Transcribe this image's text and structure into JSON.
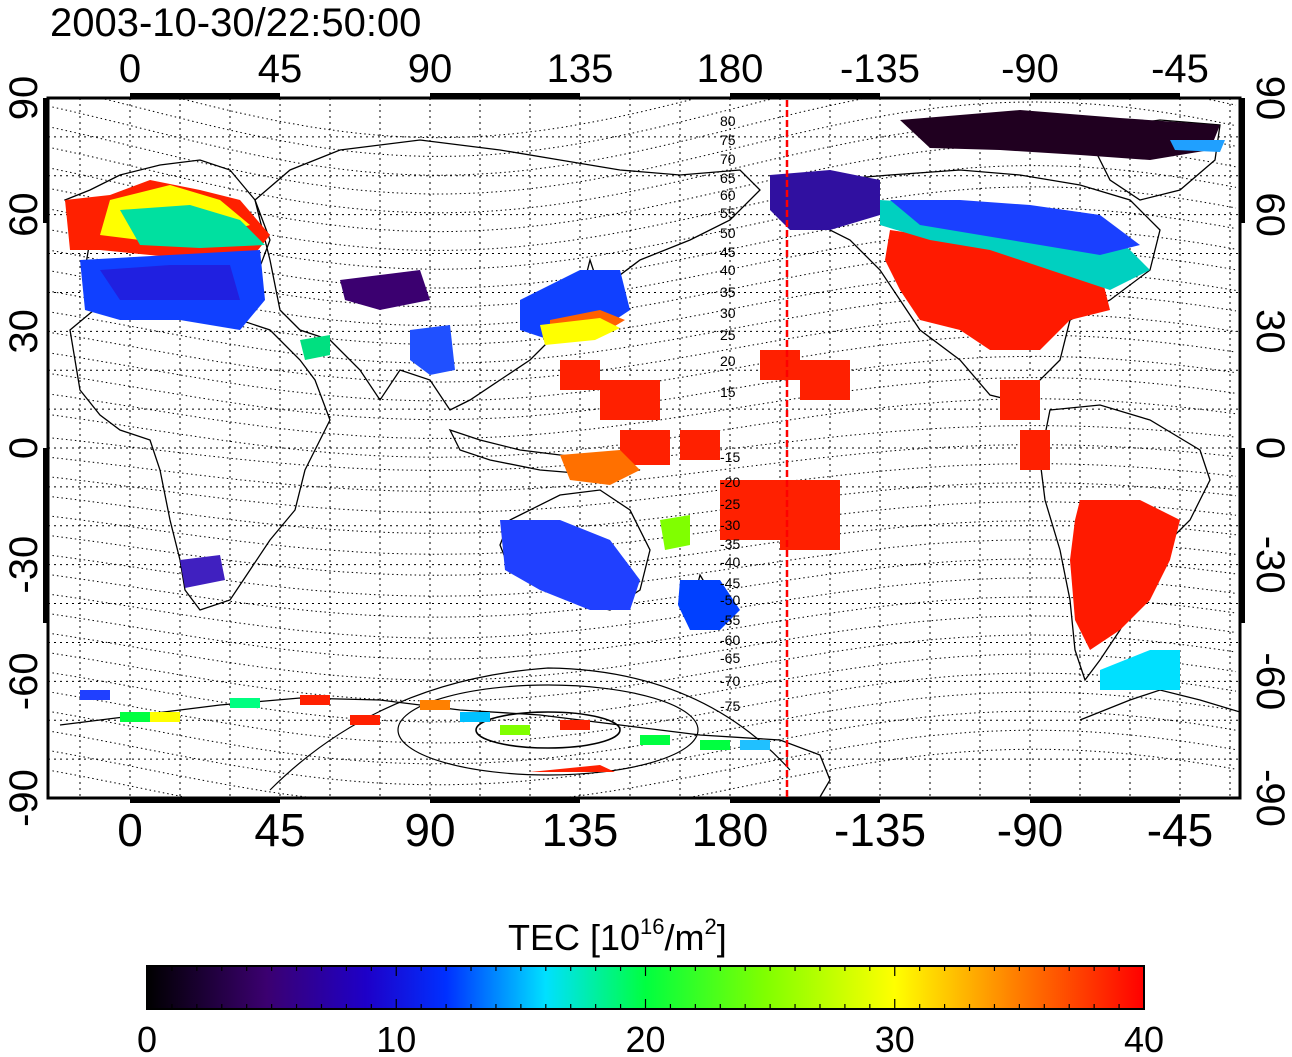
{
  "title": "2003-10-30/22:50:00",
  "map": {
    "lon_ticks": [
      "0",
      "45",
      "90",
      "135",
      "180",
      "-135",
      "-90",
      "-45"
    ],
    "lat_ticks": [
      "90",
      "60",
      "30",
      "0",
      "-30",
      "-60",
      "-90"
    ],
    "contour_labels": [
      "80",
      "75",
      "70",
      "65",
      "60",
      "55",
      "50",
      "45",
      "40",
      "35",
      "30",
      "25",
      "20",
      "15",
      "-15",
      "-20",
      "-25",
      "-30",
      "-35",
      "-40",
      "-45",
      "-50",
      "-55",
      "-60",
      "-65",
      "-70",
      "-75"
    ],
    "marker_line_lon": -157
  },
  "colorbar": {
    "label_prefix": "TEC  [10",
    "label_exp": "16",
    "label_mid": "/m",
    "label_exp2": "2",
    "label_suffix": "]",
    "ticks": [
      "0",
      "10",
      "20",
      "30",
      "40"
    ],
    "min": 0,
    "max": 40
  },
  "colors": {
    "marker_line": "#ff0000",
    "scale": [
      "#000000",
      "#4b0082",
      "#0000ff",
      "#00ffff",
      "#00ff00",
      "#ffff00",
      "#ff8000",
      "#ff0000"
    ]
  }
}
